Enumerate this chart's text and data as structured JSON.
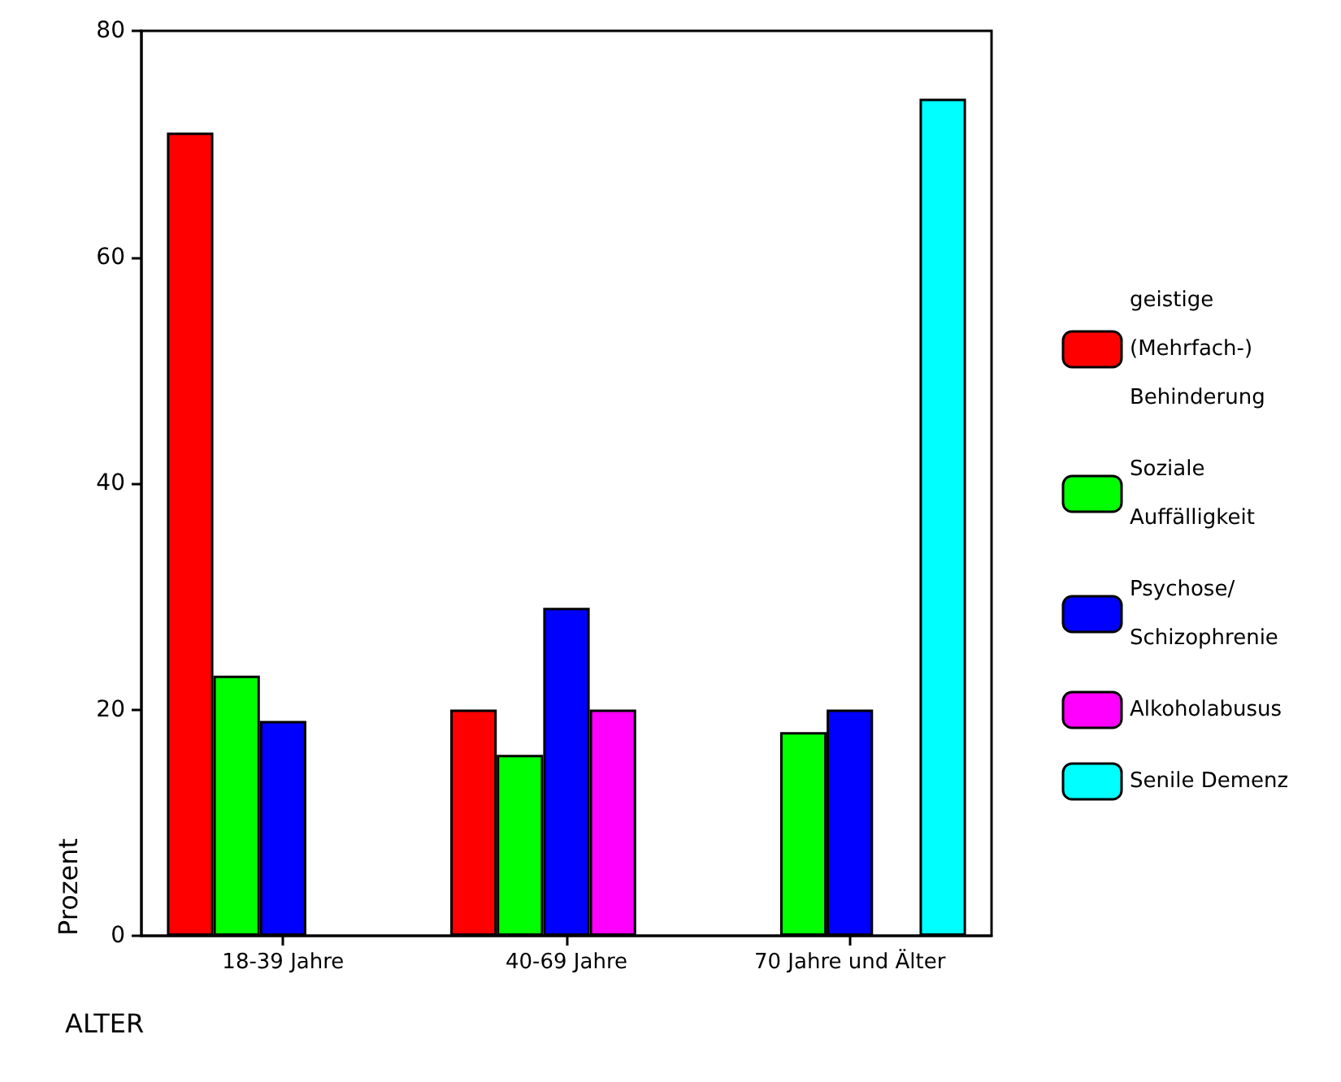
{
  "chart_data": {
    "type": "bar",
    "xlabel": "ALTER",
    "ylabel": "Prozent",
    "categories": [
      "18-39 Jahre",
      "40-69 Jahre",
      "70 Jahre und Älter"
    ],
    "series": [
      {
        "name": "geistige (Mehrfach-) Behinderung",
        "color": "#ff0000",
        "values": [
          71,
          20,
          null
        ]
      },
      {
        "name": "Soziale Auffälligkeit",
        "color": "#00ff00",
        "values": [
          23,
          16,
          18
        ]
      },
      {
        "name": "Psychose/ Schizophrenie",
        "color": "#0000ff",
        "values": [
          19,
          29,
          20
        ]
      },
      {
        "name": "Alkoholabusus",
        "color": "#ff00ff",
        "values": [
          null,
          20,
          null
        ]
      },
      {
        "name": "Senile Demenz",
        "color": "#00ffff",
        "values": [
          null,
          null,
          74
        ]
      }
    ],
    "ylim": [
      0,
      80
    ],
    "yticks": [
      0,
      20,
      40,
      60,
      80
    ],
    "grid": false,
    "legend": "right"
  }
}
